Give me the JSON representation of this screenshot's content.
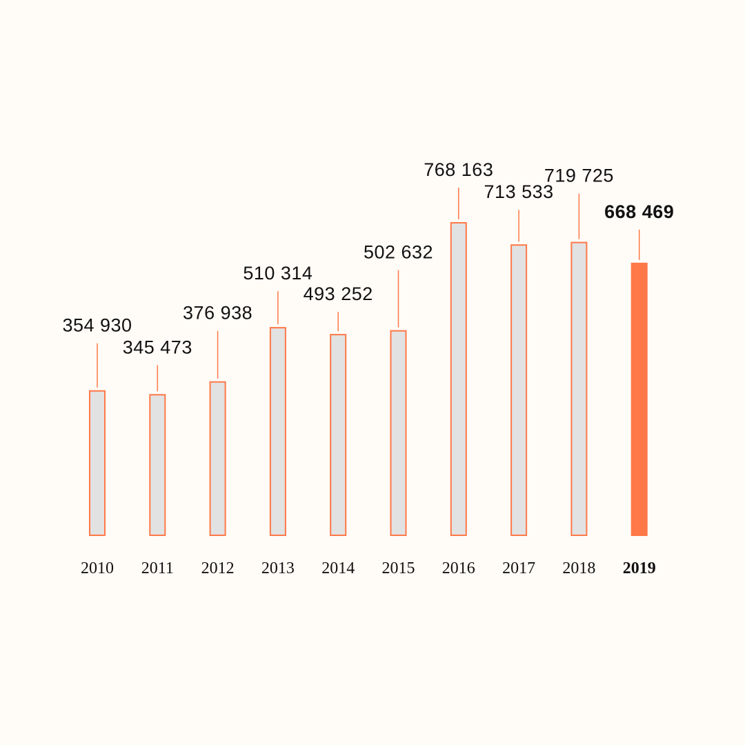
{
  "chart_data": {
    "type": "bar",
    "title": "",
    "xlabel": "",
    "ylabel": "",
    "categories": [
      "2010",
      "2011",
      "2012",
      "2013",
      "2014",
      "2015",
      "2016",
      "2017",
      "2018",
      "2019"
    ],
    "values": [
      354930,
      345473,
      376938,
      510314,
      493252,
      502632,
      768163,
      713533,
      719725,
      668469
    ],
    "value_labels": [
      "354 930",
      "345 473",
      "376 938",
      "510 314",
      "493 252",
      "502 632",
      "768 163",
      "713 533",
      "719 725",
      "668 469"
    ],
    "highlight_category": "2019",
    "ylim": [
      0,
      768163
    ],
    "grid": false,
    "legend": "none"
  },
  "colors": {
    "background": "#fffbf6",
    "bar_fill": "#e2e2e2",
    "bar_outline": "#ff7848",
    "highlight": "#ff7848",
    "text": "#111111"
  }
}
